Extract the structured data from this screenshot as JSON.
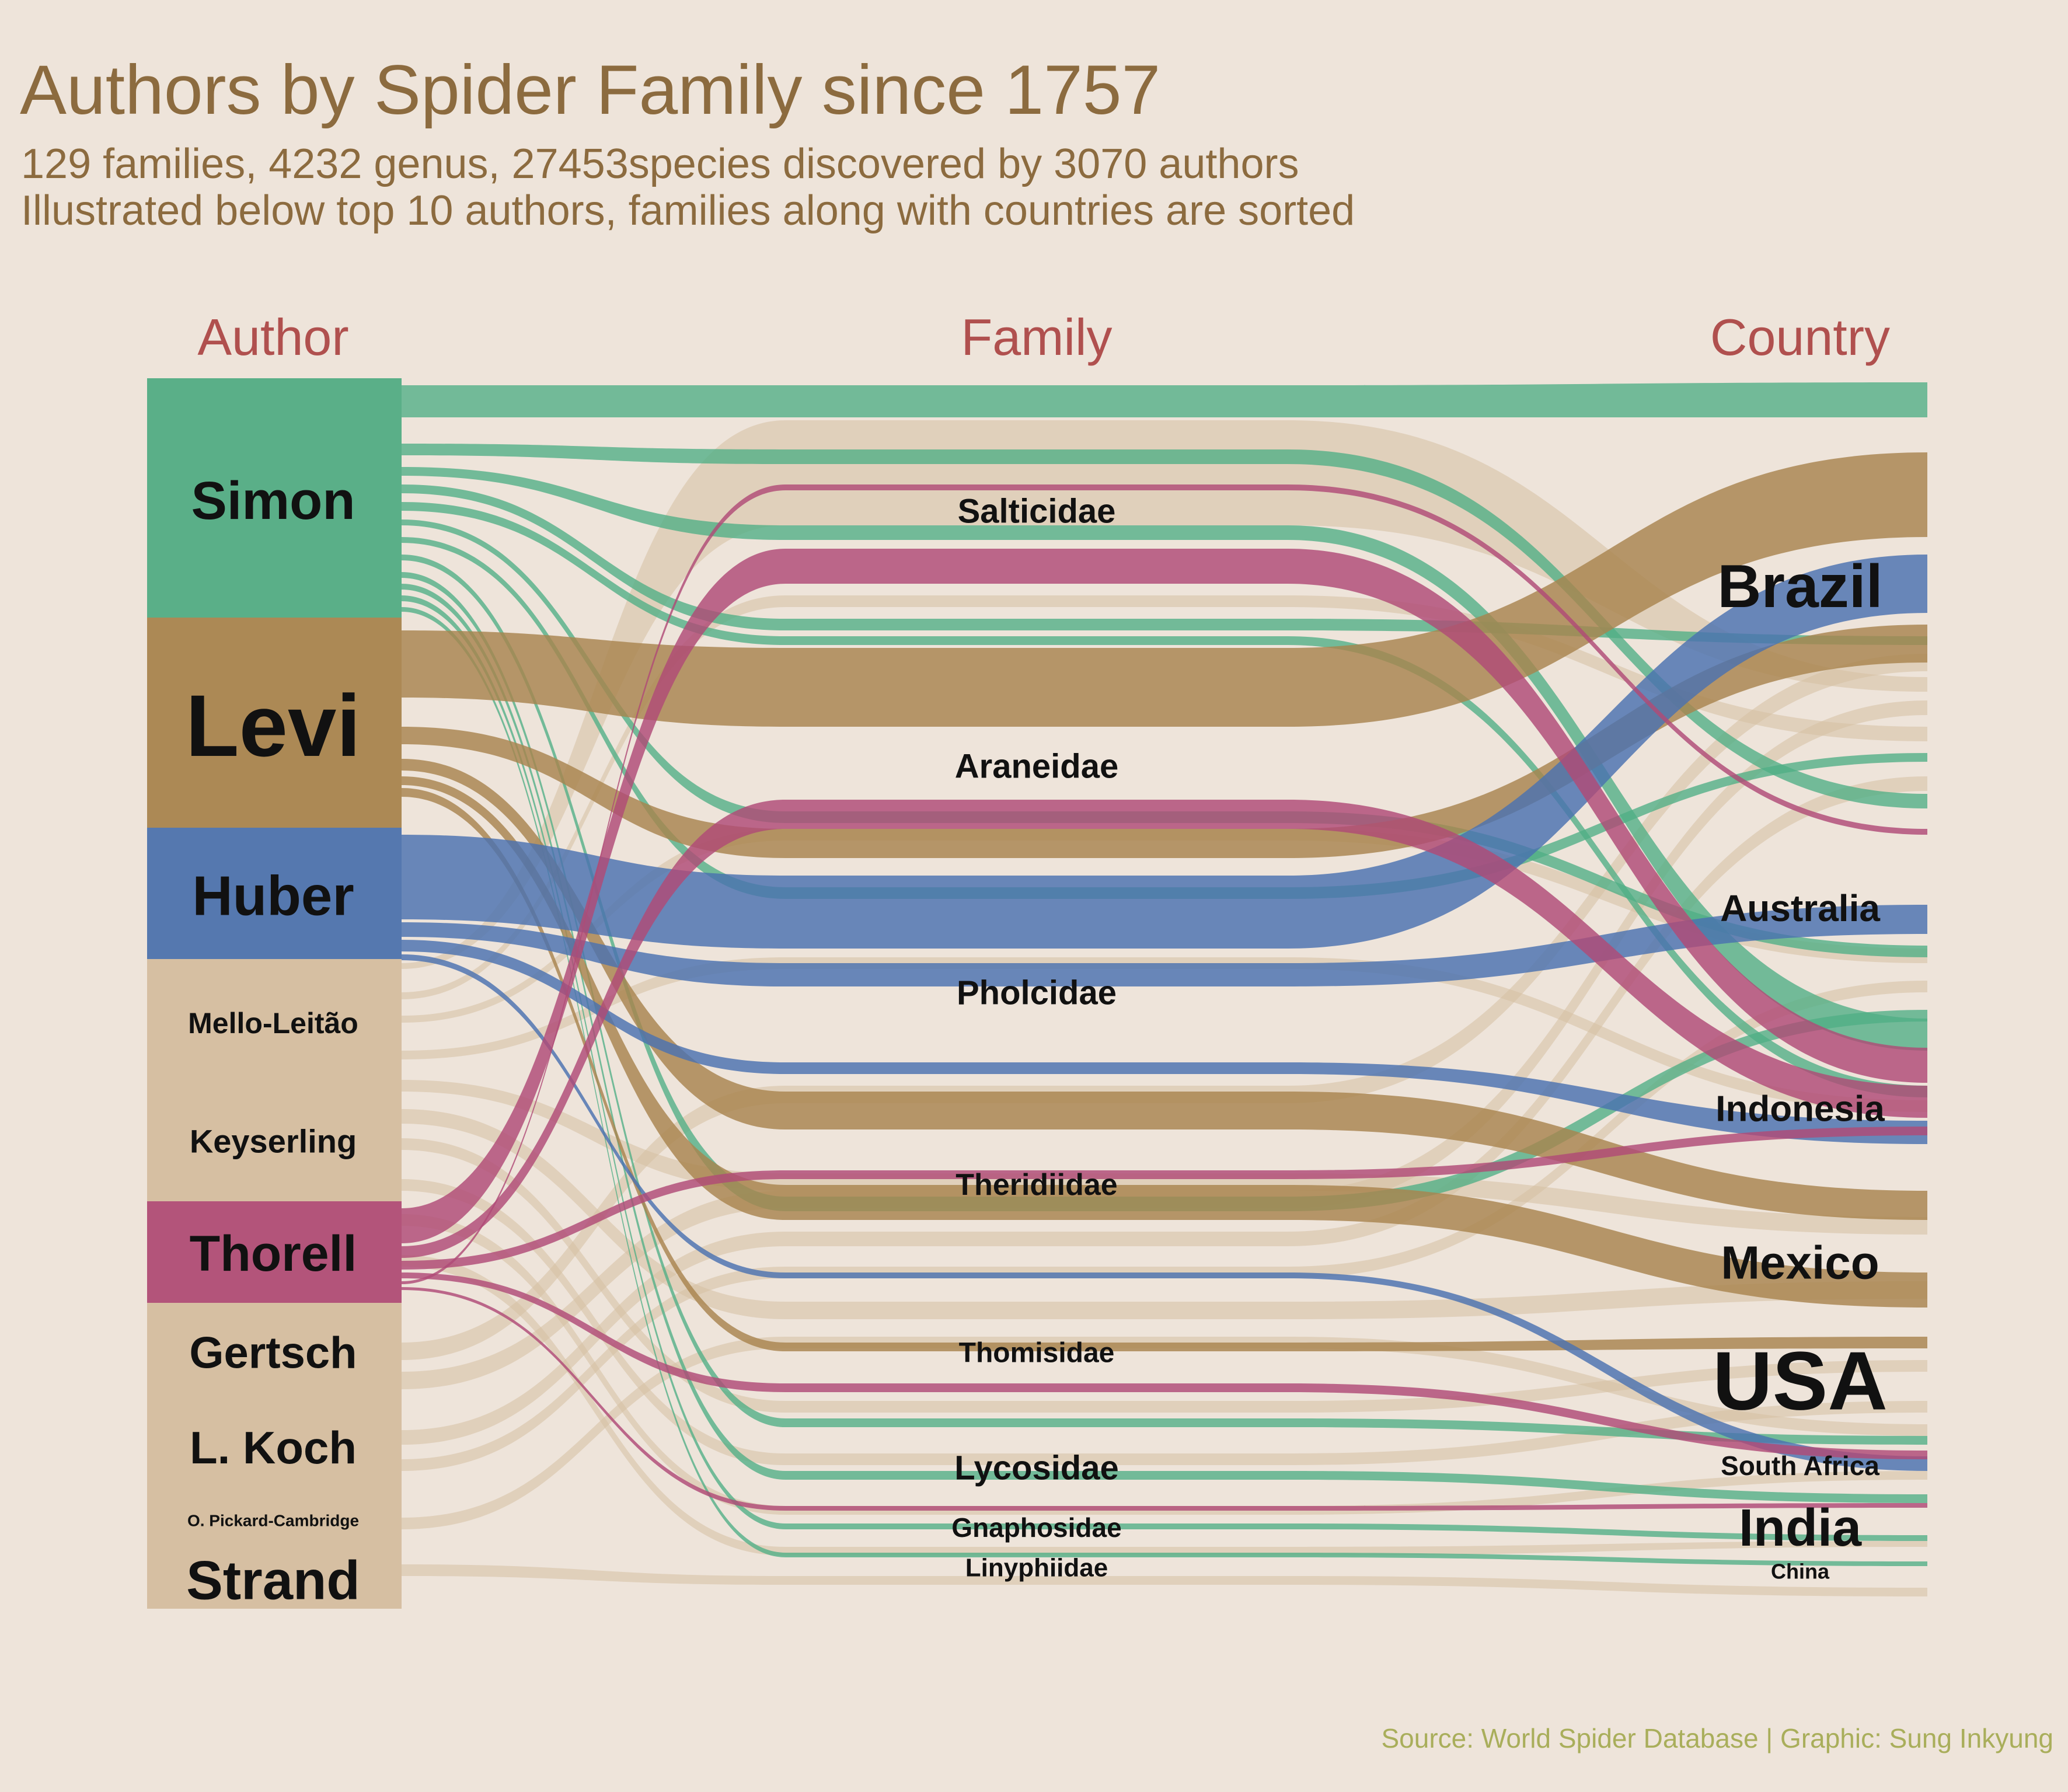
{
  "title": "Authors by Spider Family since 1757",
  "subtitle_lines": [
    "129 families, 4232 genus,  27453species discovered by 3070 authors",
    "Illustrated below top 10 authors, families along with countries are sorted"
  ],
  "caption": "Source: World Spider Database | Graphic: Sung Inkyung",
  "colors": {
    "background": "#EEE4DA",
    "Simon": "#4FAE85",
    "Levi": "#A8844E",
    "Huber": "#4A72B0",
    "Thorell": "#B04B76",
    "other": "#D6BFA2"
  },
  "chart_data": {
    "type": "alluvial",
    "axes": [
      "Author",
      "Family",
      "Country"
    ],
    "authors": [
      "Simon",
      "Levi",
      "Huber",
      "Mello-Leitão",
      "Keyserling",
      "Thorell",
      "Gertsch",
      "L. Koch",
      "O. Pickard-Cambridge",
      "Strand"
    ],
    "families": [
      "Salticidae",
      "Araneidae",
      "Pholcidae",
      "Theridiidae",
      "Thomisidae",
      "Lycosidae",
      "Gnaphosidae",
      "Linyphiidae"
    ],
    "countries": [
      "Brazil",
      "Australia",
      "Indonesia",
      "Mexico",
      "USA",
      "South Africa",
      "India",
      "China"
    ],
    "highlighted_authors": [
      "Simon",
      "Levi",
      "Huber",
      "Thorell"
    ]
  }
}
